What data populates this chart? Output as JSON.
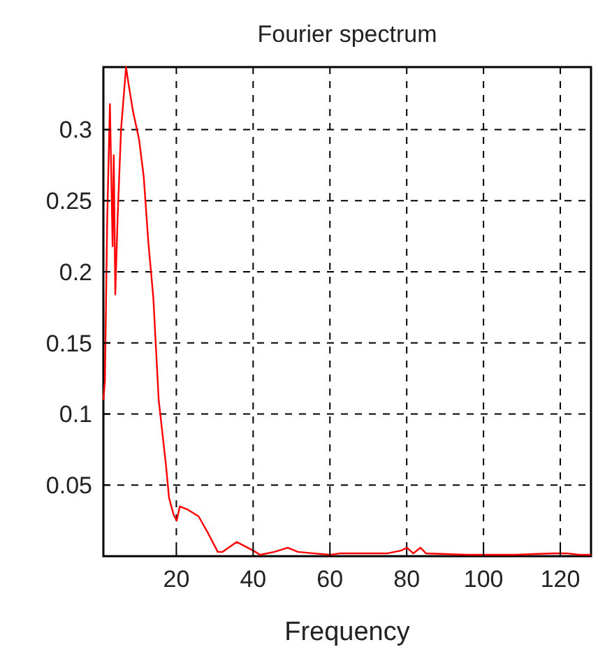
{
  "chart_data": {
    "type": "line",
    "title": "Fourier spectrum",
    "xlabel": "Frequency",
    "xlim": [
      1,
      128
    ],
    "xticks": [
      20,
      40,
      60,
      80,
      100,
      120
    ],
    "ylim": [
      0,
      0.344
    ],
    "yticks": [
      0.05,
      0.1,
      0.15,
      0.2,
      0.25,
      0.3
    ],
    "grid": true,
    "line_style": "solid",
    "marker": "none",
    "series": [
      {
        "color": "#ff0000",
        "x": [
          1,
          1.4,
          2,
          2.7,
          3.4,
          3.7,
          4.1,
          4.7,
          5.6,
          6.9,
          7.5,
          8.7,
          10.3,
          11.5,
          12.7,
          14,
          15.4,
          17.3,
          18.1,
          19.3,
          20.1,
          20.9,
          22.8,
          25.8,
          28.3,
          30.8,
          32,
          35.7,
          40,
          41.8,
          45.5,
          49,
          51.7,
          55.6,
          60.2,
          62.7,
          75,
          78.6,
          80.1,
          81.7,
          83.6,
          85,
          95.8,
          108,
          118,
          121.6,
          125,
          128
        ],
        "values": [
          0.11,
          0.123,
          0.238,
          0.318,
          0.218,
          0.282,
          0.184,
          0.238,
          0.3,
          0.344,
          0.333,
          0.313,
          0.293,
          0.267,
          0.221,
          0.182,
          0.11,
          0.064,
          0.041,
          0.029,
          0.025,
          0.035,
          0.033,
          0.028,
          0.016,
          0.003,
          0.003,
          0.01,
          0.004,
          0.001,
          0.003,
          0.006,
          0.003,
          0.002,
          0.001,
          0.002,
          0.002,
          0.004,
          0.006,
          0.002,
          0.006,
          0.002,
          0.001,
          0.001,
          0.002,
          0.002,
          0.001,
          0.001
        ]
      }
    ]
  }
}
